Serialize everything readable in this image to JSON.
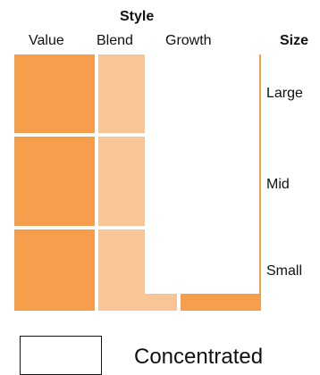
{
  "style_box": {
    "title": "Style",
    "columns": [
      "Value",
      "Blend",
      "Growth"
    ],
    "size_title": "Size",
    "rows": [
      "Large",
      "Mid",
      "Small"
    ],
    "colors": {
      "strong": "#f79e4d",
      "light": "#f8c596",
      "empty": "#ffffff"
    },
    "holdings": [
      {
        "row": "Large",
        "column": "Value",
        "level": "strong"
      },
      {
        "row": "Large",
        "column": "Blend",
        "level": "light"
      },
      {
        "row": "Large",
        "column": "Growth",
        "level": "empty"
      },
      {
        "row": "Mid",
        "column": "Value",
        "level": "strong"
      },
      {
        "row": "Mid",
        "column": "Blend",
        "level": "light"
      },
      {
        "row": "Mid",
        "column": "Growth",
        "level": "empty"
      },
      {
        "row": "Small",
        "column": "Value",
        "level": "strong"
      },
      {
        "row": "Small",
        "column": "Blend",
        "level": "light"
      },
      {
        "row": "Small",
        "column": "Growth",
        "level": "partial-strong"
      }
    ]
  },
  "legend": {
    "label": "Concentrated"
  }
}
